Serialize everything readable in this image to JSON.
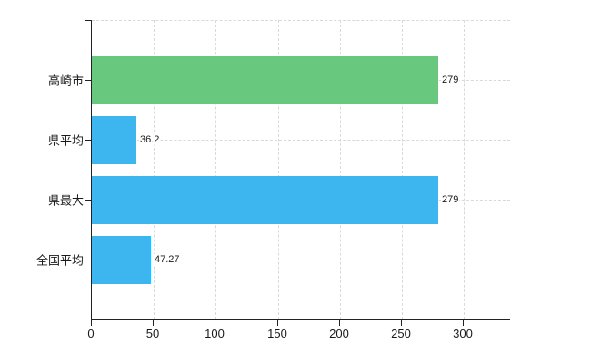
{
  "chart_data": {
    "type": "bar",
    "orientation": "horizontal",
    "title": "",
    "categories": [
      "高崎市",
      "県平均",
      "県最大",
      "全国平均"
    ],
    "values": [
      279,
      36.2,
      279,
      47.27
    ],
    "value_labels": [
      "279",
      "36.2",
      "279",
      "47.27"
    ],
    "bar_colors": [
      "#68c87e",
      "#3db6f0",
      "#3db6f0",
      "#3db6f0"
    ],
    "x_ticks": [
      0,
      50,
      100,
      150,
      200,
      250,
      300
    ],
    "x_tick_labels": [
      "0",
      "50",
      "100",
      "150",
      "200",
      "250",
      "300"
    ],
    "xlim": [
      0,
      337
    ],
    "grid": true,
    "grid_horizontal_at_category_centers": true,
    "grid_top_edge_line": true,
    "legend": "none",
    "xlabel": "",
    "ylabel": "",
    "colors": {
      "gridline": "#d9d9d9",
      "axis": "#222222",
      "text": "#1a1a1a",
      "background": "#ffffff"
    }
  }
}
